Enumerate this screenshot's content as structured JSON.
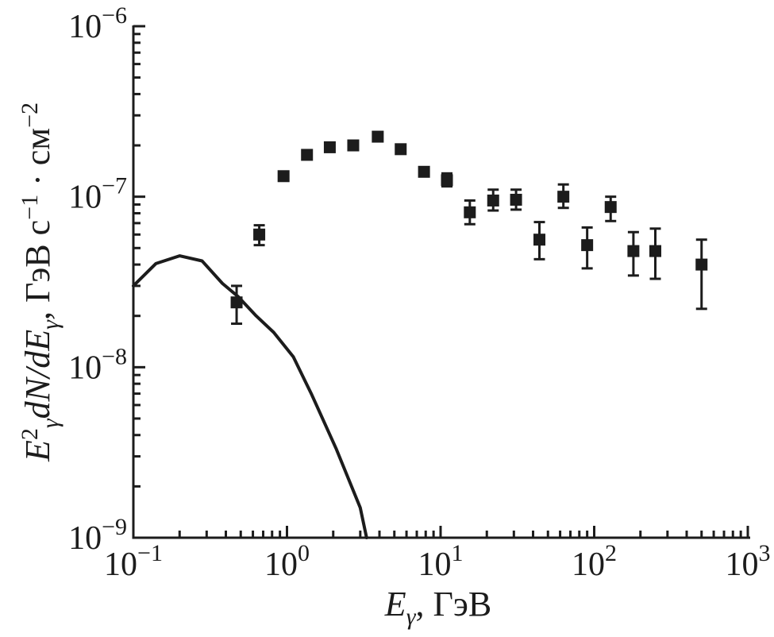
{
  "page": {
    "background": "#ffffff",
    "ink": "#1c1c1c"
  },
  "chart_data": {
    "type": "scatter",
    "title": "",
    "xscale": "log",
    "yscale": "log",
    "xlim": [
      0.1,
      1000
    ],
    "ylim": [
      1e-09,
      1e-06
    ],
    "grid": false,
    "legend": "none",
    "xlabel_plain": "Eγ, ГэВ",
    "ylabel_plain": "Eγ² dN/dEγ, ГэВ с⁻¹ · см⁻²",
    "xlabel_segments": [
      {
        "t": "E",
        "it": true
      },
      {
        "t": "γ",
        "sub": true,
        "it": true
      },
      {
        "t": ", ГэВ"
      }
    ],
    "ylabel_segments": [
      {
        "t": "E",
        "it": true
      },
      {
        "t": "2",
        "sup": true
      },
      {
        "t": "γ",
        "sub": true,
        "it": true
      },
      {
        "t": "dN/dE",
        "it": true
      },
      {
        "t": "γ",
        "sub": true,
        "it": true
      },
      {
        "t": ", ГэВ с"
      },
      {
        "t": "−1",
        "sup": true
      },
      {
        "t": " · см"
      },
      {
        "t": "−2",
        "sup": true
      }
    ],
    "x_ticks": [
      {
        "value": 0.1,
        "base": "10",
        "exp": "−1"
      },
      {
        "value": 1,
        "base": "10",
        "exp": "0"
      },
      {
        "value": 10,
        "base": "10",
        "exp": "1"
      },
      {
        "value": 100,
        "base": "10",
        "exp": "2"
      },
      {
        "value": 1000,
        "base": "10",
        "exp": "3"
      }
    ],
    "y_ticks": [
      {
        "value": 1e-06,
        "base": "10",
        "exp": "−6"
      },
      {
        "value": 1e-07,
        "base": "10",
        "exp": "−7"
      },
      {
        "value": 1e-08,
        "base": "10",
        "exp": "−8"
      },
      {
        "value": 1e-09,
        "base": "10",
        "exp": "−9"
      }
    ],
    "series": [
      {
        "name": "observed-spectrum",
        "type": "scatter",
        "marker": "square",
        "color": "#1c1c1c",
        "points": [
          {
            "x": 0.47,
            "y": 2.4e-08,
            "lo": 1.8e-08,
            "hi": 3e-08
          },
          {
            "x": 0.66,
            "y": 6e-08,
            "lo": 5.2e-08,
            "hi": 6.8e-08
          },
          {
            "x": 0.95,
            "y": 1.32e-07
          },
          {
            "x": 1.35,
            "y": 1.76e-07
          },
          {
            "x": 1.9,
            "y": 1.95e-07
          },
          {
            "x": 2.7,
            "y": 2e-07
          },
          {
            "x": 3.9,
            "y": 2.25e-07
          },
          {
            "x": 5.5,
            "y": 1.9e-07
          },
          {
            "x": 7.8,
            "y": 1.4e-07
          },
          {
            "x": 11,
            "y": 1.25e-07,
            "lo": 1.15e-07,
            "hi": 1.37e-07
          },
          {
            "x": 15.5,
            "y": 8.1e-08,
            "lo": 6.9e-08,
            "hi": 9.5e-08
          },
          {
            "x": 22,
            "y": 9.5e-08,
            "lo": 8.3e-08,
            "hi": 1.1e-07
          },
          {
            "x": 31,
            "y": 9.6e-08,
            "lo": 8.4e-08,
            "hi": 1.1e-07
          },
          {
            "x": 44,
            "y": 5.6e-08,
            "lo": 4.3e-08,
            "hi": 7.1e-08
          },
          {
            "x": 63,
            "y": 1e-07,
            "lo": 8.6e-08,
            "hi": 1.18e-07
          },
          {
            "x": 90,
            "y": 5.2e-08,
            "lo": 3.8e-08,
            "hi": 6.6e-08
          },
          {
            "x": 128,
            "y": 8.7e-08,
            "lo": 7.2e-08,
            "hi": 1e-07
          },
          {
            "x": 180,
            "y": 4.8e-08,
            "lo": 3.45e-08,
            "hi": 6.2e-08
          },
          {
            "x": 250,
            "y": 4.8e-08,
            "lo": 3.3e-08,
            "hi": 6.5e-08
          },
          {
            "x": 500,
            "y": 4e-08,
            "lo": 2.2e-08,
            "hi": 5.6e-08
          }
        ]
      },
      {
        "name": "model-curve",
        "type": "line",
        "color": "#1c1c1c",
        "points": [
          [
            0.1,
            3e-08
          ],
          [
            0.14,
            4.05e-08
          ],
          [
            0.2,
            4.5e-08
          ],
          [
            0.28,
            4.2e-08
          ],
          [
            0.38,
            3.1e-08
          ],
          [
            0.48,
            2.6e-08
          ],
          [
            0.63,
            2e-08
          ],
          [
            0.82,
            1.6e-08
          ],
          [
            1.1,
            1.15e-08
          ],
          [
            1.45,
            6.9e-09
          ],
          [
            2.1,
            3.3e-09
          ],
          [
            3.0,
            1.5e-09
          ],
          [
            3.3,
            1e-09
          ]
        ]
      }
    ]
  }
}
